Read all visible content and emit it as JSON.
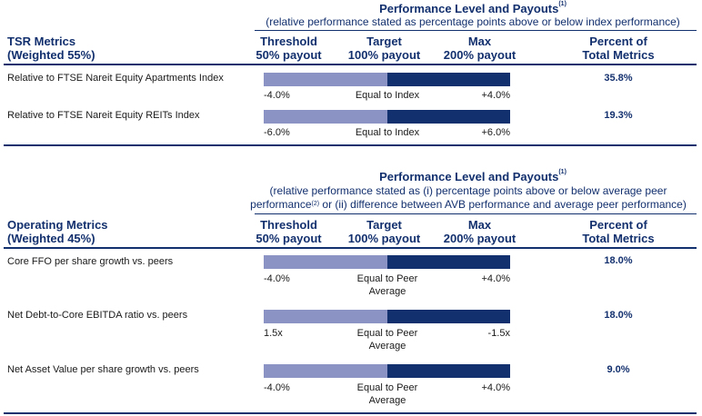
{
  "tsr": {
    "header": {
      "title": "Performance Level and Payouts",
      "title_sup": "(1)",
      "subtitle": "(relative performance stated as percentage points above or below index performance)"
    },
    "section_title_1": "TSR Metrics",
    "section_title_2": "(Weighted 55%)",
    "columns": {
      "threshold_1": "Threshold",
      "threshold_2": "50% payout",
      "target_1": "Target",
      "target_2": "100% payout",
      "max_1": "Max",
      "max_2": "200% payout",
      "percent_1": "Percent of",
      "percent_2": "Total Metrics"
    },
    "rows": [
      {
        "metric": "Relative to FTSE Nareit Equity Apartments Index",
        "threshold": "-4.0%",
        "target": "Equal to Index",
        "max": "+4.0%",
        "percent": "35.8%"
      },
      {
        "metric": "Relative to FTSE Nareit Equity REITs Index",
        "threshold": "-6.0%",
        "target": "Equal to Index",
        "max": "+6.0%",
        "percent": "19.3%"
      }
    ]
  },
  "operating": {
    "header": {
      "title": "Performance Level and Payouts",
      "title_sup": "(1)",
      "subtitle_line1": "(relative performance stated as (i) percentage points above or below average peer",
      "subtitle_line2a": "performance",
      "subtitle_sup": "(2)",
      "subtitle_line2b": " or (ii) difference between AVB performance and average peer performance)"
    },
    "section_title_1": "Operating Metrics",
    "section_title_2": "(Weighted 45%)",
    "columns": {
      "threshold_1": "Threshold",
      "threshold_2": "50% payout",
      "target_1": "Target",
      "target_2": "100% payout",
      "max_1": "Max",
      "max_2": "200% payout",
      "percent_1": "Percent of",
      "percent_2": "Total Metrics"
    },
    "rows": [
      {
        "metric": "Core FFO per share growth vs. peers",
        "threshold": "-4.0%",
        "target_1": "Equal to Peer",
        "target_2": "Average",
        "max": "+4.0%",
        "percent": "18.0%"
      },
      {
        "metric": "Net Debt-to-Core EBITDA ratio vs. peers",
        "threshold": "1.5x",
        "target_1": "Equal to Peer",
        "target_2": "Average",
        "max": "-1.5x",
        "percent": "18.0%"
      },
      {
        "metric": "Net Asset Value per share growth vs. peers",
        "threshold": "-4.0%",
        "target_1": "Equal to Peer",
        "target_2": "Average",
        "max": "+4.0%",
        "percent": "9.0%"
      }
    ]
  },
  "colors": {
    "navy": "#13306e",
    "light_bar": "#8b93c5"
  }
}
